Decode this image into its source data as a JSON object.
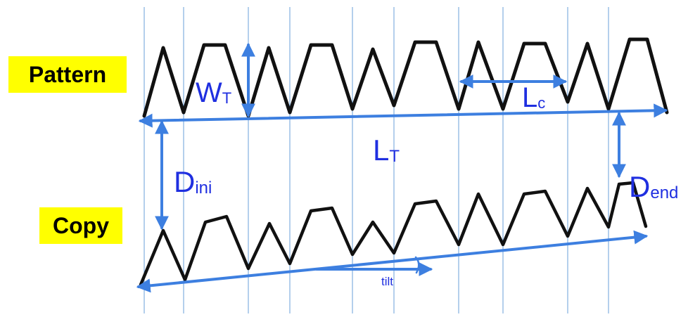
{
  "labels": {
    "pattern": "Pattern",
    "copy": "Copy"
  },
  "annotations": {
    "wt": {
      "main": "W",
      "sub": "T"
    },
    "lc": {
      "main": "L",
      "sub": "c"
    },
    "lt": {
      "main": "L",
      "sub": "T"
    },
    "dini": {
      "main": "D",
      "sub": "ini"
    },
    "dend": {
      "main": "D",
      "sub": "end"
    },
    "tilt": "tilt"
  },
  "colors": {
    "arrow": "#3d7fe0",
    "label_text": "#1f2fe0",
    "trace": "#111111",
    "gridline": "#6a9fd8",
    "tag_background": "#ffff00"
  }
}
